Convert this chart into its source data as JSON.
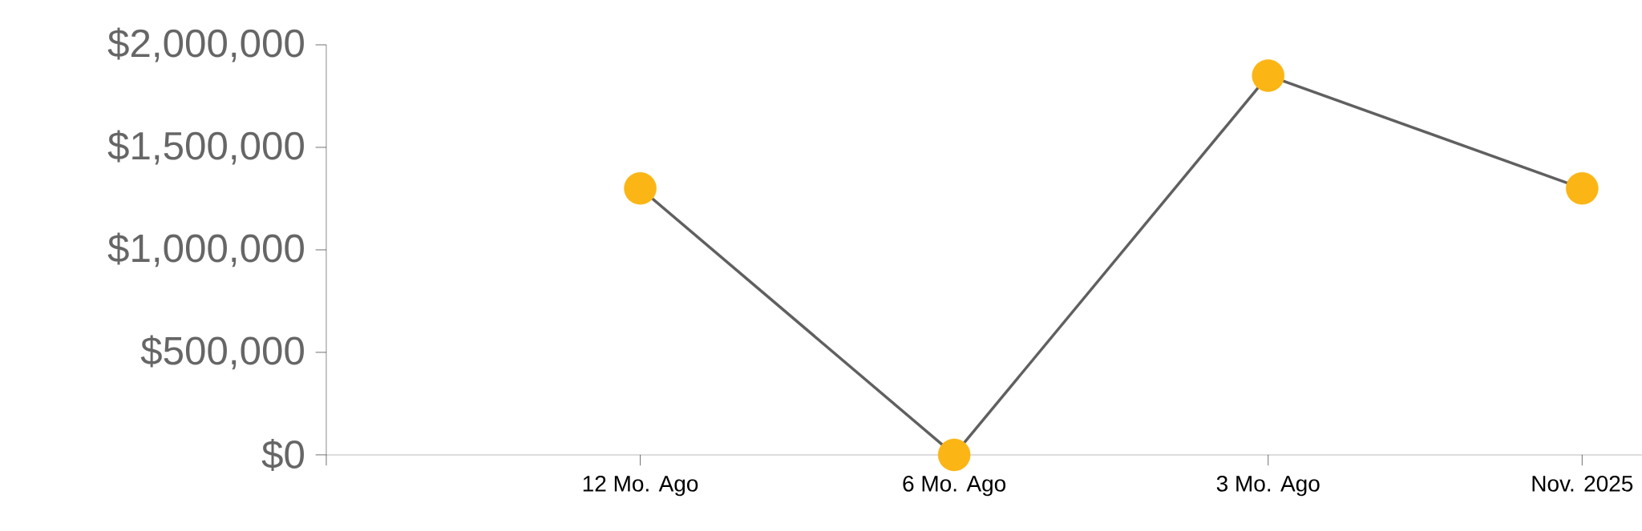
{
  "chart_data": {
    "type": "line",
    "categories": [
      null,
      "12 Mo. Ago",
      "6 Mo. Ago",
      "3 Mo. Ago",
      "Nov. 2025"
    ],
    "series": [
      {
        "color": "#606060",
        "colors": [
          null,
          "#fbb515",
          "#fbb515",
          "#fbb515",
          "#fbb515"
        ],
        "values": [
          null,
          1300000,
          0,
          1850000,
          1300000
        ]
      }
    ],
    "marker": "circle",
    "line_style": "solid",
    "ylim": [
      0,
      2000000
    ],
    "yticks": [
      {
        "value": 0,
        "label": "$0"
      },
      {
        "value": 500000,
        "label": "$500,000"
      },
      {
        "value": 1000000,
        "label": "$1,000,000"
      },
      {
        "value": 1500000,
        "label": "$1,500,000"
      },
      {
        "value": 2000000,
        "label": "$2,000,000"
      }
    ],
    "grid": false
  }
}
